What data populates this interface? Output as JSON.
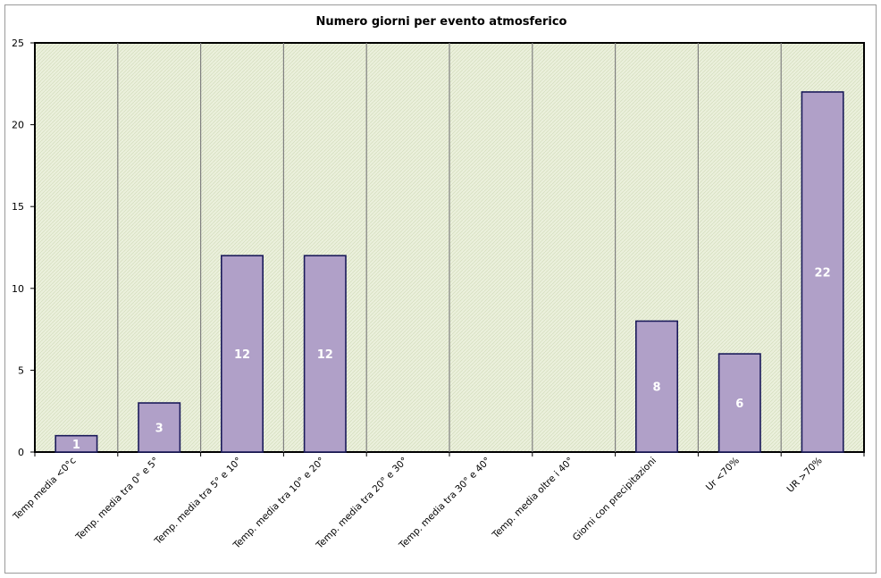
{
  "chart_data": {
    "type": "bar",
    "title": "Numero giorni per evento atmosferico",
    "xlabel": "",
    "ylabel": "",
    "ylim": [
      0,
      25
    ],
    "yticks": [
      "0",
      "5",
      "10",
      "15",
      "20",
      "25"
    ],
    "categories": [
      "Temp media <0°c",
      "Temp. media tra 0° e 5°",
      "Temp. media tra 5° e 10°",
      "Temp. media tra 10° e 20°",
      "Temp. media tra 20° e 30°",
      "Temp. media tra 30° e 40°",
      "Temp. media oltre i 40°",
      "Giorni con precipitazioni",
      "Ur <70%",
      "UR >70%"
    ],
    "values": [
      1,
      3,
      12,
      12,
      0,
      0,
      0,
      8,
      6,
      22
    ],
    "data_labels": [
      "1",
      "3",
      "12",
      "12",
      "",
      "",
      "",
      "8",
      "6",
      "22"
    ],
    "grid": "vertical",
    "legend": "none",
    "colors": {
      "bar_fill": "#b0a0c8",
      "bar_stroke": "#1a1a5a",
      "plot_bg": "#ebf0dc",
      "grid": "#808080"
    }
  }
}
